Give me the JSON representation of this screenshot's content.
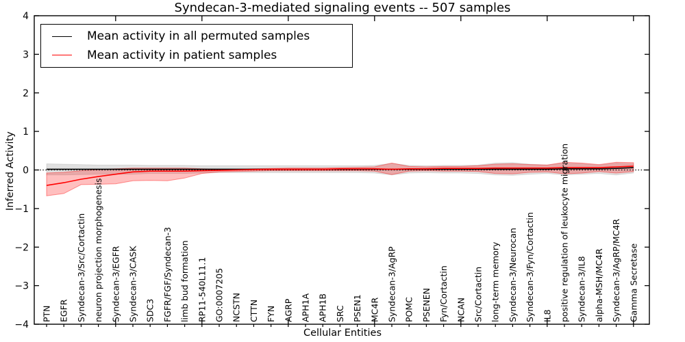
{
  "figure": {
    "title": "Syndecan-3-mediated signaling events -- 507 samples",
    "xlabel": "Cellular Entities",
    "ylabel": "Inferred Activity",
    "legend": [
      {
        "label": "Mean activity in all permuted samples",
        "color": "#000000"
      },
      {
        "label": "Mean activity in patient samples",
        "color": "#ff0000"
      }
    ]
  },
  "chart_data": {
    "type": "line",
    "title": "Syndecan-3-mediated signaling events -- 507 samples",
    "xlabel": "Cellular Entities",
    "ylabel": "Inferred Activity",
    "ylim": [
      -4,
      4
    ],
    "yticks": [
      4,
      3,
      2,
      1,
      0,
      -1,
      -2,
      -3,
      -4
    ],
    "grid": false,
    "legend_position": "upper left",
    "reference_line": {
      "y": 0,
      "style": "dotted",
      "color": "#000000"
    },
    "categories": [
      "PTN",
      "EGFR",
      "Syndecan-3/Src/Cortactin",
      "neuron projection morphogenesis",
      "Syndecan-3/EGFR",
      "Syndecan-3/CASK",
      "SDC3",
      "FGFR/FGF/Syndecan-3",
      "limb bud formation",
      "RP11-540L11.1",
      "GO:0007205",
      "NCSTN",
      "CTTN",
      "FYN",
      "AGRP",
      "APH1A",
      "APH1B",
      "SRC",
      "PSEN1",
      "MC4R",
      "Syndecan-3/AgRP",
      "POMC",
      "PSENEN",
      "Fyn/Cortactin",
      "NCAN",
      "Src/Cortactin",
      "long-term memory",
      "Syndecan-3/Neurocan",
      "Syndecan-3/Fyn/Cortactin",
      "IL8",
      "positive regulation of leukocyte migration",
      "Syndecan-3/IL8",
      "alpha-MSH/MC4R",
      "Syndecan-3/AgRP/MC4R",
      "Gamma Secretase"
    ],
    "series": [
      {
        "name": "Mean activity in all permuted samples",
        "color": "#000000",
        "band_fill": "rgba(0,0,0,0.12)",
        "band_edge": "rgba(0,0,0,0.10)",
        "values": [
          0.02,
          0.02,
          0.02,
          0.02,
          0.02,
          0.02,
          0.02,
          0.02,
          0.02,
          0.02,
          0.02,
          0.02,
          0.02,
          0.02,
          0.02,
          0.02,
          0.02,
          0.02,
          0.02,
          0.02,
          0.02,
          0.02,
          0.02,
          0.02,
          0.02,
          0.02,
          0.02,
          0.02,
          0.02,
          0.02,
          0.03,
          0.03,
          0.03,
          0.04,
          0.06
        ],
        "band_low": [
          -0.13,
          -0.13,
          -0.12,
          -0.11,
          -0.11,
          -0.11,
          -0.09,
          -0.09,
          -0.09,
          -0.08,
          -0.07,
          -0.07,
          -0.07,
          -0.07,
          -0.07,
          -0.07,
          -0.07,
          -0.07,
          -0.07,
          -0.08,
          -0.13,
          -0.08,
          -0.07,
          -0.08,
          -0.08,
          -0.09,
          -0.13,
          -0.14,
          -0.11,
          -0.09,
          -0.13,
          -0.11,
          -0.09,
          -0.13,
          -0.08
        ],
        "band_high": [
          0.16,
          0.15,
          0.14,
          0.13,
          0.13,
          0.13,
          0.12,
          0.12,
          0.12,
          0.11,
          0.11,
          0.11,
          0.11,
          0.11,
          0.11,
          0.11,
          0.11,
          0.11,
          0.11,
          0.12,
          0.17,
          0.12,
          0.11,
          0.12,
          0.12,
          0.13,
          0.18,
          0.19,
          0.15,
          0.13,
          0.18,
          0.16,
          0.13,
          0.18,
          0.16
        ]
      },
      {
        "name": "Mean activity in patient samples",
        "color": "#ff0000",
        "band_fill": "rgba(255,0,0,0.25)",
        "band_edge": "rgba(255,0,0,0.40)",
        "values": [
          -0.4,
          -0.33,
          -0.24,
          -0.17,
          -0.11,
          -0.05,
          -0.03,
          -0.03,
          -0.03,
          -0.02,
          -0.01,
          0.0,
          0.01,
          0.02,
          0.02,
          0.02,
          0.02,
          0.03,
          0.03,
          0.03,
          0.02,
          0.03,
          0.03,
          0.04,
          0.04,
          0.04,
          0.05,
          0.05,
          0.05,
          0.05,
          0.06,
          0.06,
          0.06,
          0.08,
          0.1
        ],
        "band_low": [
          -0.67,
          -0.61,
          -0.38,
          -0.37,
          -0.36,
          -0.28,
          -0.27,
          -0.28,
          -0.21,
          -0.09,
          -0.05,
          -0.04,
          -0.03,
          -0.02,
          -0.02,
          -0.02,
          -0.02,
          -0.02,
          -0.02,
          -0.03,
          -0.12,
          -0.03,
          -0.02,
          -0.03,
          -0.03,
          -0.04,
          -0.09,
          -0.1,
          -0.06,
          -0.05,
          -0.1,
          -0.08,
          -0.04,
          -0.08,
          -0.04
        ],
        "band_high": [
          -0.08,
          -0.06,
          -0.02,
          0.01,
          0.03,
          0.05,
          0.05,
          0.05,
          0.05,
          0.03,
          0.02,
          0.02,
          0.03,
          0.04,
          0.05,
          0.05,
          0.05,
          0.06,
          0.07,
          0.08,
          0.18,
          0.09,
          0.08,
          0.09,
          0.09,
          0.11,
          0.15,
          0.16,
          0.14,
          0.13,
          0.2,
          0.18,
          0.14,
          0.2,
          0.19
        ]
      }
    ]
  }
}
